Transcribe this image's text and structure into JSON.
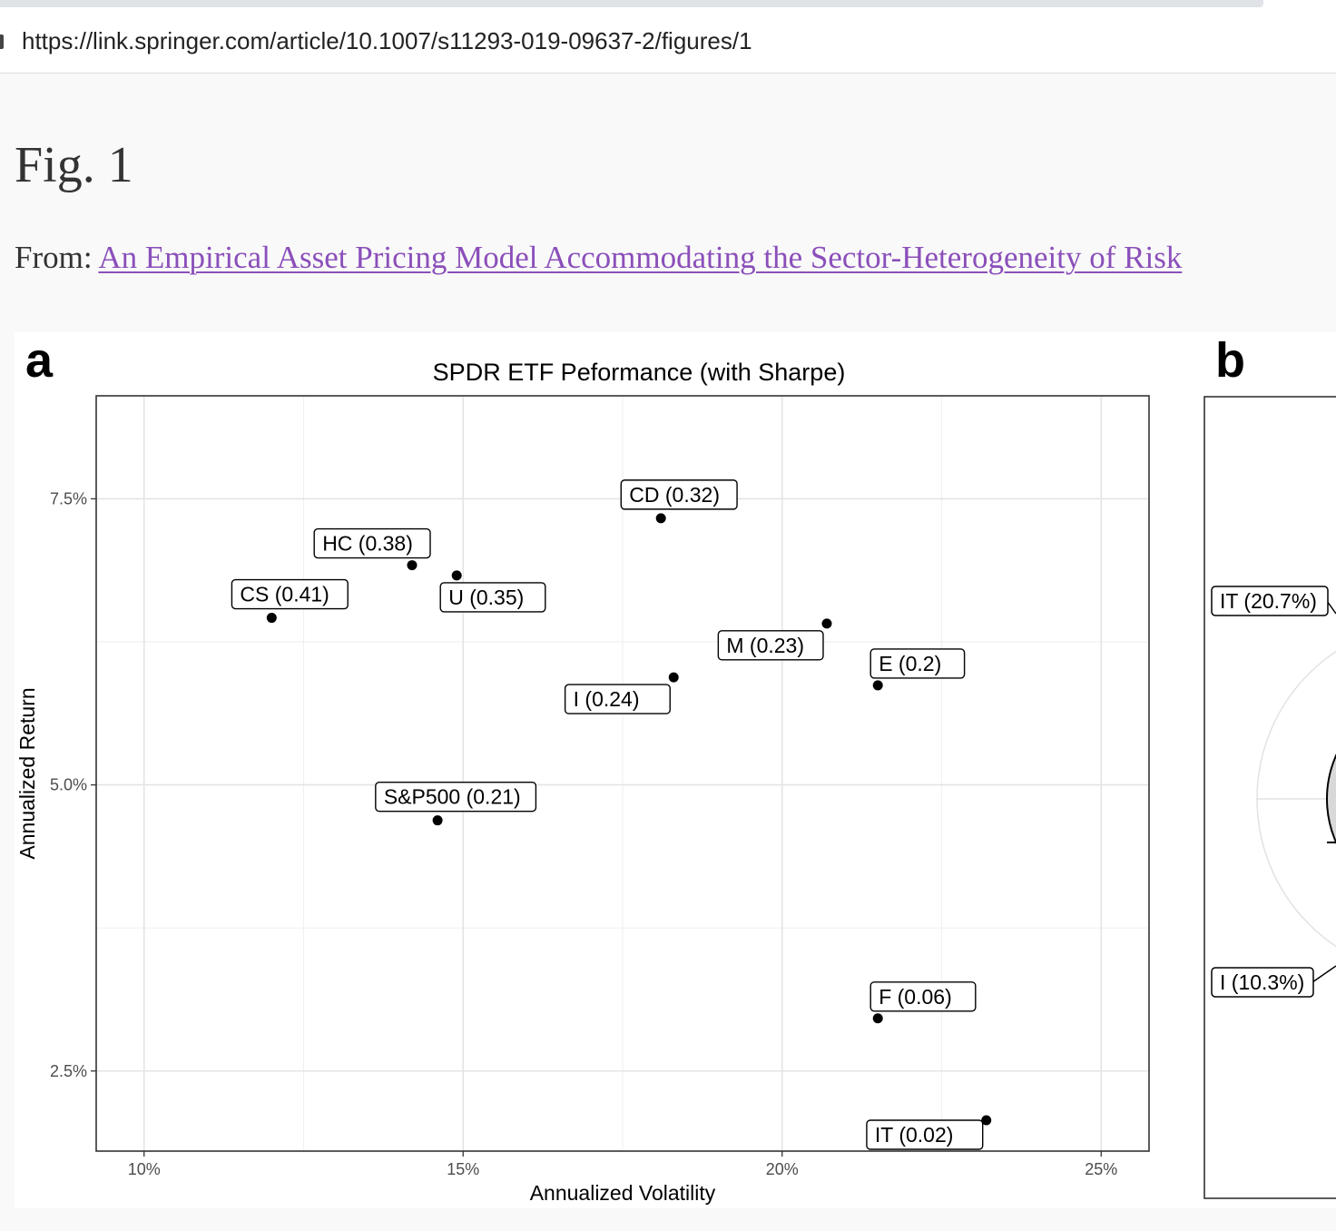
{
  "browser": {
    "url": "https://link.springer.com/article/10.1007/s11293-019-09637-2/figures/1"
  },
  "page": {
    "fig_title": "Fig. 1",
    "from_label": "From:",
    "article_link": "An Empirical Asset Pricing Model Accommodating the Sector-Heterogeneity of Risk"
  },
  "panels": {
    "a_letter": "a",
    "b_letter": "b"
  },
  "chart_data": {
    "type": "scatter",
    "title": "SPDR ETF Peformance (with Sharpe)",
    "xlabel": "Annualized Volatility",
    "ylabel": "Annualized Return",
    "xlim": [
      9.25,
      25.75
    ],
    "ylim": [
      1.8,
      8.4
    ],
    "xticks": [
      10,
      15,
      20,
      25
    ],
    "xtick_labels": [
      "10%",
      "15%",
      "20%",
      "25%"
    ],
    "yticks": [
      2.5,
      5.0,
      7.5
    ],
    "ytick_labels": [
      "2.5%",
      "5.0%",
      "7.5%"
    ],
    "grid": true,
    "points": [
      {
        "label": "CD (0.32)",
        "x": 18.1,
        "y": 7.33,
        "label_pos": "above"
      },
      {
        "label": "HC (0.38)",
        "x": 14.2,
        "y": 6.92,
        "label_pos": "above-left"
      },
      {
        "label": "U (0.35)",
        "x": 14.9,
        "y": 6.83,
        "label_pos": "below"
      },
      {
        "label": "CS (0.41)",
        "x": 12.0,
        "y": 6.46,
        "label_pos": "above"
      },
      {
        "label": "M (0.23)",
        "x": 20.7,
        "y": 6.41,
        "label_pos": "below-left"
      },
      {
        "label": "I (0.24)",
        "x": 18.3,
        "y": 5.94,
        "label_pos": "below-left"
      },
      {
        "label": "E (0.2)",
        "x": 21.5,
        "y": 5.87,
        "label_pos": "above-right"
      },
      {
        "label": "S&P500 (0.21)",
        "x": 14.6,
        "y": 4.69,
        "label_pos": "above"
      },
      {
        "label": "F (0.06)",
        "x": 21.5,
        "y": 2.96,
        "label_pos": "above-right"
      },
      {
        "label": "IT (0.02)",
        "x": 23.2,
        "y": 2.07,
        "label_pos": "below-left"
      }
    ]
  },
  "panel_b": {
    "labels": [
      "IT (20.7%)",
      "I (10.3%)"
    ]
  }
}
